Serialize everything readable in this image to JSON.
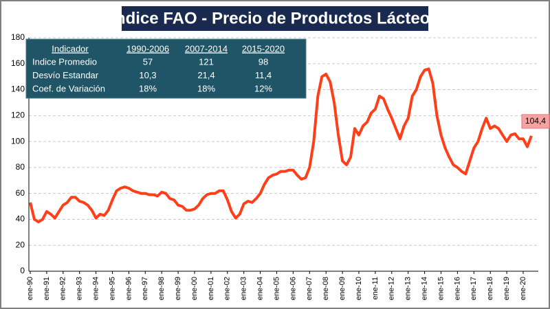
{
  "chart_data": {
    "type": "line",
    "title": "Indice FAO - Precio de Productos Lácteos",
    "categories": [
      "ene-90",
      null,
      null,
      null,
      "ene-91",
      null,
      null,
      null,
      "ene-92",
      null,
      null,
      null,
      "ene-93",
      null,
      null,
      null,
      "ene-94",
      null,
      null,
      null,
      "ene-95",
      null,
      null,
      null,
      "ene-96",
      null,
      null,
      null,
      "ene-97",
      null,
      null,
      null,
      "ene-98",
      null,
      null,
      null,
      "ene-99",
      null,
      null,
      null,
      "ene-00",
      null,
      null,
      null,
      "ene-01",
      null,
      null,
      null,
      "ene-02",
      null,
      null,
      null,
      "ene-03",
      null,
      null,
      null,
      "ene-04",
      null,
      null,
      null,
      "ene-05",
      null,
      null,
      null,
      "ene-06",
      null,
      null,
      null,
      "ene-07",
      null,
      null,
      null,
      "ene-08",
      null,
      null,
      null,
      "ene-09",
      null,
      null,
      null,
      "ene-10",
      null,
      null,
      null,
      "ene-11",
      null,
      null,
      null,
      "ene-12",
      null,
      null,
      null,
      "ene-13",
      null,
      null,
      null,
      "ene-14",
      null,
      null,
      null,
      "ene-15",
      null,
      null,
      null,
      "ene-16",
      null,
      null,
      null,
      "ene-17",
      null,
      null,
      null,
      "ene-18",
      null,
      null,
      null,
      "ene-19",
      null,
      null,
      null,
      "ene-20",
      null,
      null
    ],
    "values": [
      53,
      40,
      38,
      40,
      46,
      44,
      41,
      46,
      51,
      53,
      57,
      57,
      54,
      53,
      51,
      47,
      41,
      44,
      43,
      47,
      55,
      62,
      64,
      65,
      64,
      62,
      61,
      60,
      60,
      59,
      59,
      58,
      61,
      60,
      56,
      55,
      51,
      50,
      47,
      47,
      48,
      51,
      56,
      59,
      60,
      60,
      62,
      62,
      55,
      46,
      41,
      44,
      52,
      54,
      53,
      56,
      60,
      67,
      72,
      74,
      75,
      77,
      77,
      78,
      78,
      74,
      71,
      72,
      80,
      100,
      135,
      150,
      152,
      146,
      130,
      105,
      85,
      82,
      88,
      110,
      105,
      112,
      115,
      122,
      125,
      135,
      133,
      125,
      118,
      110,
      102,
      112,
      118,
      135,
      140,
      150,
      155,
      156,
      145,
      120,
      105,
      95,
      88,
      82,
      80,
      77,
      75,
      85,
      95,
      100,
      110,
      118,
      110,
      112,
      110,
      105,
      100,
      105,
      106,
      102,
      102,
      96,
      104.4
    ],
    "value_labels": {
      "122": "104,4"
    },
    "color": "#ff3e1a",
    "ylim": [
      0,
      180
    ],
    "yticks": [
      0,
      20,
      40,
      60,
      80,
      100,
      120,
      140,
      160,
      180
    ],
    "grid": true,
    "table": {
      "header": [
        "Indicador",
        "1990-2006",
        "2007-2014",
        "2015-2020"
      ],
      "rows": [
        [
          "Indice Promedio",
          "57",
          "121",
          "98"
        ],
        [
          "Desvío Estandar",
          "10,3",
          "21,4",
          "11,4"
        ],
        [
          "Coef. de Variación",
          "18%",
          "18%",
          "12%"
        ]
      ]
    }
  }
}
